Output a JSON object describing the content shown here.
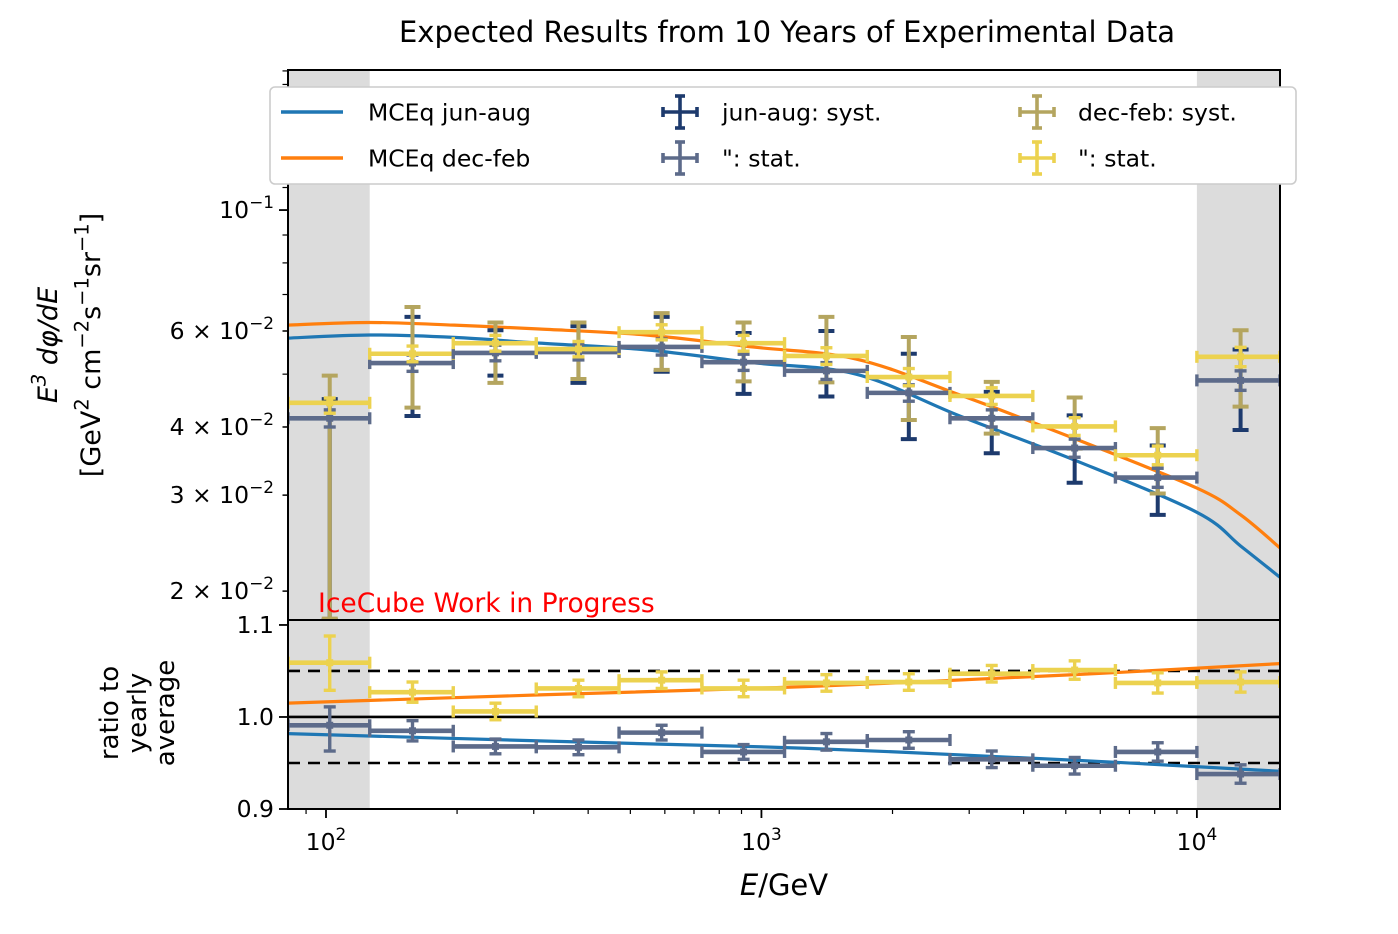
{
  "title": "Expected Results from 10 Years of Experimental Data",
  "watermark": {
    "text": "IceCube Work in Progress",
    "color": "#ff0000"
  },
  "colors": {
    "mceq_jun_aug": "#1f77b4",
    "mceq_dec_feb": "#ff7f0e",
    "jun_aug_syst": "#1d3a6d",
    "jun_aug_stat": "#5d6b8a",
    "dec_feb_syst": "#b4a55f",
    "dec_feb_stat": "#ecd24f",
    "shaded_band": "#dcdcdc",
    "legend_border": "#cccccc",
    "axis": "#000000"
  },
  "axes": {
    "xlabel_italic": "E",
    "xlabel_rest": "/GeV",
    "main_ylabel_line1": "E^3 dφ/dE",
    "main_ylabel_line2": "[GeV^2 cm^−2s^−1sr^−1]",
    "ratio_ylabel_lines": [
      "ratio to",
      "yearly",
      "average"
    ]
  },
  "legend": {
    "items": [
      {
        "type": "line",
        "color_key": "mceq_jun_aug",
        "label": "MCEq jun-aug",
        "col": 0,
        "row": 0
      },
      {
        "type": "line",
        "color_key": "mceq_dec_feb",
        "label": "MCEq dec-feb",
        "col": 0,
        "row": 1
      },
      {
        "type": "cross",
        "color_key": "jun_aug_syst",
        "label": "jun-aug: syst.",
        "col": 1,
        "row": 0
      },
      {
        "type": "cross",
        "color_key": "jun_aug_stat",
        "label": "\": stat.",
        "col": 1,
        "row": 1
      },
      {
        "type": "cross",
        "color_key": "dec_feb_syst",
        "label": "dec-feb: syst.",
        "col": 2,
        "row": 0
      },
      {
        "type": "cross",
        "color_key": "dec_feb_stat",
        "label": "\": stat.",
        "col": 2,
        "row": 1
      }
    ]
  },
  "chart_data": [
    {
      "id": "main",
      "type": "line",
      "title": "Expected Results from 10 Years of Experimental Data",
      "xlabel": "E/GeV",
      "ylabel": "E^3 dφ/dE [GeV^2 cm^−2 s^−1 sr^−1]",
      "xscale": "log",
      "yscale": "log",
      "grid": false,
      "legend_position": "upper center",
      "xlim": [
        81.8,
        15520
      ],
      "ylim": [
        0.0177,
        0.1807
      ],
      "x_major_ticks": [
        {
          "v": 100,
          "label": "10^2"
        },
        {
          "v": 1000,
          "label": "10^3"
        },
        {
          "v": 10000,
          "label": "10^4"
        }
      ],
      "y_labeled_ticks": [
        {
          "v": 0.1,
          "label": "10^−1"
        },
        {
          "v": 0.06,
          "label": "6 × 10^−2"
        },
        {
          "v": 0.04,
          "label": "4 × 10^−2"
        },
        {
          "v": 0.03,
          "label": "3 × 10^−2"
        },
        {
          "v": 0.02,
          "label": "2 × 10^−2"
        }
      ],
      "shaded_bands_x": [
        [
          81.8,
          126
        ],
        [
          10000,
          15520
        ]
      ],
      "curves": [
        {
          "name": "MCEq jun-aug",
          "color_key": "mceq_jun_aug",
          "points": [
            [
              81,
              0.0582
            ],
            [
              126,
              0.059
            ],
            [
              197,
              0.0584
            ],
            [
              309,
              0.057
            ],
            [
              544,
              0.0554
            ],
            [
              952,
              0.0525
            ],
            [
              1650,
              0.05
            ],
            [
              2855,
              0.0419
            ],
            [
              5320,
              0.0346
            ],
            [
              10000,
              0.0279
            ],
            [
              12600,
              0.0242
            ],
            [
              15520,
              0.0212
            ]
          ]
        },
        {
          "name": "MCEq dec-feb",
          "color_key": "mceq_dec_feb",
          "points": [
            [
              81,
              0.0615
            ],
            [
              126,
              0.0622
            ],
            [
              197,
              0.0615
            ],
            [
              309,
              0.0605
            ],
            [
              544,
              0.059
            ],
            [
              952,
              0.0561
            ],
            [
              1650,
              0.0533
            ],
            [
              2855,
              0.0458
            ],
            [
              5320,
              0.0379
            ],
            [
              10000,
              0.0309
            ],
            [
              12600,
              0.0276
            ],
            [
              15520,
              0.024
            ]
          ]
        }
      ],
      "bins": [
        {
          "e_lo": 81.8,
          "e": 102,
          "e_hi": 126,
          "jun_aug": {
            "flux": 0.0415,
            "syst": [
              0.0177,
              0.045
            ],
            "stat": [
              0.04,
              0.043
            ]
          },
          "dec_feb": {
            "flux": 0.0443,
            "syst": [
              0.0178,
              0.0497
            ],
            "stat": [
              0.0424,
              0.0452
            ]
          }
        },
        {
          "e_lo": 126,
          "e": 158,
          "e_hi": 196,
          "jun_aug": {
            "flux": 0.0524,
            "syst": [
              0.0419,
              0.0637
            ],
            "stat": [
              0.0506,
              0.0542
            ]
          },
          "dec_feb": {
            "flux": 0.0545,
            "syst": [
              0.0434,
              0.0664
            ],
            "stat": [
              0.0527,
              0.0563
            ]
          }
        },
        {
          "e_lo": 196,
          "e": 245,
          "e_hi": 304,
          "jun_aug": {
            "flux": 0.0547,
            "syst": [
              0.0497,
              0.0602
            ],
            "stat": [
              0.0529,
              0.0565
            ]
          },
          "dec_feb": {
            "flux": 0.057,
            "syst": [
              0.0482,
              0.0622
            ],
            "stat": [
              0.0551,
              0.0589
            ]
          }
        },
        {
          "e_lo": 304,
          "e": 380,
          "e_hi": 471,
          "jun_aug": {
            "flux": 0.0549,
            "syst": [
              0.0482,
              0.0612
            ],
            "stat": [
              0.0531,
              0.0567
            ]
          },
          "dec_feb": {
            "flux": 0.0556,
            "syst": [
              0.049,
              0.0622
            ],
            "stat": [
              0.0538,
              0.0574
            ]
          }
        },
        {
          "e_lo": 471,
          "e": 590,
          "e_hi": 730,
          "jun_aug": {
            "flux": 0.0561,
            "syst": [
              0.0505,
              0.0637
            ],
            "stat": [
              0.0542,
              0.058
            ]
          },
          "dec_feb": {
            "flux": 0.0597,
            "syst": [
              0.0509,
              0.0647
            ],
            "stat": [
              0.0578,
              0.0616
            ]
          }
        },
        {
          "e_lo": 730,
          "e": 910,
          "e_hi": 1130,
          "jun_aug": {
            "flux": 0.0526,
            "syst": [
              0.046,
              0.0595
            ],
            "stat": [
              0.0508,
              0.0544
            ]
          },
          "dec_feb": {
            "flux": 0.057,
            "syst": [
              0.0485,
              0.0622
            ],
            "stat": [
              0.0551,
              0.0589
            ]
          }
        },
        {
          "e_lo": 1130,
          "e": 1410,
          "e_hi": 1750,
          "jun_aug": {
            "flux": 0.0507,
            "syst": [
              0.0455,
              0.06
            ],
            "stat": [
              0.0489,
              0.0525
            ]
          },
          "dec_feb": {
            "flux": 0.054,
            "syst": [
              0.0483,
              0.0637
            ],
            "stat": [
              0.0521,
              0.0559
            ]
          }
        },
        {
          "e_lo": 1750,
          "e": 2180,
          "e_hi": 2710,
          "jun_aug": {
            "flux": 0.0462,
            "syst": [
              0.038,
              0.0545
            ],
            "stat": [
              0.0446,
              0.0478
            ]
          },
          "dec_feb": {
            "flux": 0.0494,
            "syst": [
              0.0412,
              0.0585
            ],
            "stat": [
              0.0476,
              0.0512
            ]
          }
        },
        {
          "e_lo": 2710,
          "e": 3380,
          "e_hi": 4200,
          "jun_aug": {
            "flux": 0.0415,
            "syst": [
              0.0358,
              0.0464
            ],
            "stat": [
              0.04,
              0.043
            ]
          },
          "dec_feb": {
            "flux": 0.0456,
            "syst": [
              0.0389,
              0.0484
            ],
            "stat": [
              0.044,
              0.0472
            ]
          }
        },
        {
          "e_lo": 4200,
          "e": 5240,
          "e_hi": 6500,
          "jun_aug": {
            "flux": 0.0366,
            "syst": [
              0.0316,
              0.042
            ],
            "stat": [
              0.0352,
              0.038
            ]
          },
          "dec_feb": {
            "flux": 0.0401,
            "syst": [
              0.0365,
              0.0453
            ],
            "stat": [
              0.0386,
              0.0416
            ]
          }
        },
        {
          "e_lo": 6500,
          "e": 8130,
          "e_hi": 10000,
          "jun_aug": {
            "flux": 0.0323,
            "syst": [
              0.0276,
              0.037
            ],
            "stat": [
              0.031,
              0.0336
            ]
          },
          "dec_feb": {
            "flux": 0.0355,
            "syst": [
              0.0302,
              0.0398
            ],
            "stat": [
              0.0341,
              0.0369
            ]
          }
        },
        {
          "e_lo": 10000,
          "e": 12600,
          "e_hi": 15520,
          "jun_aug": {
            "flux": 0.0487,
            "syst": [
              0.0395,
              0.0555
            ],
            "stat": [
              0.0467,
              0.0507
            ]
          },
          "dec_feb": {
            "flux": 0.0538,
            "syst": [
              0.0436,
              0.0602
            ],
            "stat": [
              0.0516,
              0.056
            ]
          }
        }
      ]
    },
    {
      "id": "ratio",
      "type": "line",
      "title": "",
      "xlabel": "E/GeV",
      "ylabel": "ratio to yearly average",
      "xscale": "log",
      "yscale": "linear",
      "grid": false,
      "xlim": [
        81.8,
        15520
      ],
      "ylim": [
        0.9,
        1.1054
      ],
      "y_major_ticks": [
        {
          "v": 0.9,
          "label": "0.9"
        },
        {
          "v": 1.0,
          "label": "1.0"
        },
        {
          "v": 1.1,
          "label": "1.1"
        }
      ],
      "hlines": [
        {
          "y": 1.0,
          "style": "solid"
        },
        {
          "y": 1.05,
          "style": "dashed"
        },
        {
          "y": 0.95,
          "style": "dashed"
        }
      ],
      "shaded_bands_x": [
        [
          81.8,
          126
        ],
        [
          10000,
          15520
        ]
      ],
      "curves": [
        {
          "name": "MCEq jun-aug ratio",
          "color_key": "mceq_jun_aug",
          "points": [
            [
              81,
              0.982
            ],
            [
              309,
              0.974
            ],
            [
              1258,
              0.966
            ],
            [
              5240,
              0.953
            ],
            [
              15520,
              0.941
            ]
          ]
        },
        {
          "name": "MCEq dec-feb ratio",
          "color_key": "mceq_dec_feb",
          "points": [
            [
              81,
              1.015
            ],
            [
              309,
              1.024
            ],
            [
              1258,
              1.033
            ],
            [
              5240,
              1.046
            ],
            [
              15520,
              1.058
            ]
          ]
        }
      ],
      "points": [
        {
          "e_lo": 81.8,
          "e": 102,
          "e_hi": 126,
          "jun_aug": {
            "ratio": 0.991,
            "stat": [
              0.963,
              1.011
            ]
          },
          "dec_feb": {
            "ratio": 1.059,
            "stat": [
              1.029,
              1.088
            ]
          }
        },
        {
          "e_lo": 126,
          "e": 158,
          "e_hi": 196,
          "jun_aug": {
            "ratio": 0.985,
            "stat": [
              0.974,
              0.996
            ]
          },
          "dec_feb": {
            "ratio": 1.027,
            "stat": [
              1.016,
              1.038
            ]
          }
        },
        {
          "e_lo": 196,
          "e": 245,
          "e_hi": 304,
          "jun_aug": {
            "ratio": 0.968,
            "stat": [
              0.96,
              0.976
            ]
          },
          "dec_feb": {
            "ratio": 1.006,
            "stat": [
              0.997,
              1.015
            ]
          }
        },
        {
          "e_lo": 304,
          "e": 380,
          "e_hi": 471,
          "jun_aug": {
            "ratio": 0.967,
            "stat": [
              0.959,
              0.975
            ]
          },
          "dec_feb": {
            "ratio": 1.031,
            "stat": [
              1.022,
              1.04
            ]
          }
        },
        {
          "e_lo": 471,
          "e": 590,
          "e_hi": 730,
          "jun_aug": {
            "ratio": 0.983,
            "stat": [
              0.975,
              0.991
            ]
          },
          "dec_feb": {
            "ratio": 1.04,
            "stat": [
              1.031,
              1.049
            ]
          }
        },
        {
          "e_lo": 730,
          "e": 910,
          "e_hi": 1130,
          "jun_aug": {
            "ratio": 0.962,
            "stat": [
              0.954,
              0.97
            ]
          },
          "dec_feb": {
            "ratio": 1.031,
            "stat": [
              1.022,
              1.04
            ]
          }
        },
        {
          "e_lo": 1130,
          "e": 1410,
          "e_hi": 1750,
          "jun_aug": {
            "ratio": 0.973,
            "stat": [
              0.964,
              0.982
            ]
          },
          "dec_feb": {
            "ratio": 1.037,
            "stat": [
              1.028,
              1.046
            ]
          }
        },
        {
          "e_lo": 1750,
          "e": 2180,
          "e_hi": 2710,
          "jun_aug": {
            "ratio": 0.975,
            "stat": [
              0.966,
              0.984
            ]
          },
          "dec_feb": {
            "ratio": 1.038,
            "stat": [
              1.029,
              1.047
            ]
          }
        },
        {
          "e_lo": 2710,
          "e": 3380,
          "e_hi": 4200,
          "jun_aug": {
            "ratio": 0.954,
            "stat": [
              0.945,
              0.963
            ]
          },
          "dec_feb": {
            "ratio": 1.047,
            "stat": [
              1.038,
              1.056
            ]
          }
        },
        {
          "e_lo": 4200,
          "e": 5240,
          "e_hi": 6500,
          "jun_aug": {
            "ratio": 0.947,
            "stat": [
              0.938,
              0.956
            ]
          },
          "dec_feb": {
            "ratio": 1.051,
            "stat": [
              1.041,
              1.061
            ]
          }
        },
        {
          "e_lo": 6500,
          "e": 8130,
          "e_hi": 10000,
          "jun_aug": {
            "ratio": 0.962,
            "stat": [
              0.952,
              0.972
            ]
          },
          "dec_feb": {
            "ratio": 1.037,
            "stat": [
              1.026,
              1.048
            ]
          }
        },
        {
          "e_lo": 10000,
          "e": 12600,
          "e_hi": 15520,
          "jun_aug": {
            "ratio": 0.938,
            "stat": [
              0.928,
              0.948
            ]
          },
          "dec_feb": {
            "ratio": 1.038,
            "stat": [
              1.027,
              1.049
            ]
          }
        }
      ]
    }
  ]
}
